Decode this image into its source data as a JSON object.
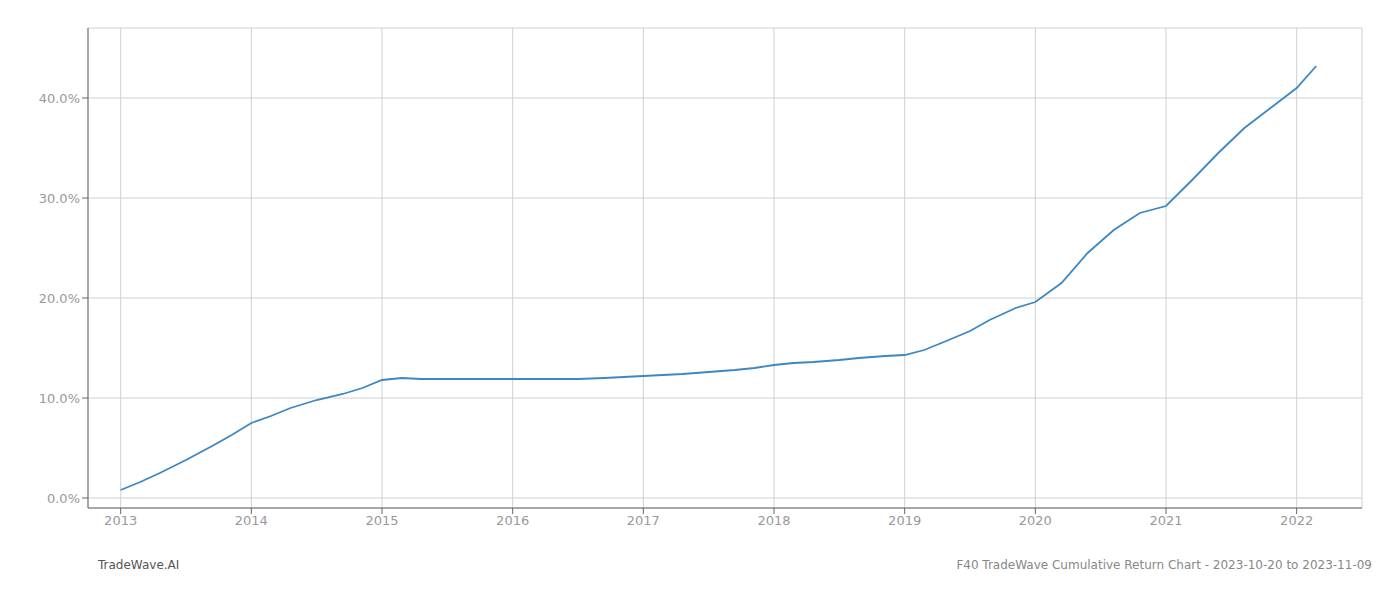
{
  "chart_data": {
    "type": "line",
    "x": [
      2013.0,
      2013.15,
      2013.3,
      2013.5,
      2013.7,
      2013.85,
      2014.0,
      2014.15,
      2014.3,
      2014.5,
      2014.7,
      2014.85,
      2015.0,
      2015.15,
      2015.3,
      2015.5,
      2015.7,
      2015.85,
      2016.0,
      2016.2,
      2016.5,
      2016.7,
      2016.85,
      2017.0,
      2017.15,
      2017.3,
      2017.5,
      2017.7,
      2017.85,
      2018.0,
      2018.15,
      2018.3,
      2018.5,
      2018.65,
      2018.85,
      2019.0,
      2019.15,
      2019.3,
      2019.5,
      2019.65,
      2019.85,
      2020.0,
      2020.2,
      2020.4,
      2020.6,
      2020.8,
      2021.0,
      2021.2,
      2021.4,
      2021.6,
      2021.8,
      2022.0,
      2022.15
    ],
    "values": [
      0.008,
      0.016,
      0.025,
      0.038,
      0.052,
      0.063,
      0.075,
      0.082,
      0.09,
      0.098,
      0.104,
      0.11,
      0.118,
      0.12,
      0.119,
      0.119,
      0.119,
      0.119,
      0.119,
      0.119,
      0.119,
      0.12,
      0.121,
      0.122,
      0.123,
      0.124,
      0.126,
      0.128,
      0.13,
      0.133,
      0.135,
      0.136,
      0.138,
      0.14,
      0.142,
      0.143,
      0.148,
      0.156,
      0.167,
      0.178,
      0.19,
      0.196,
      0.215,
      0.245,
      0.268,
      0.285,
      0.292,
      0.318,
      0.345,
      0.37,
      0.39,
      0.41,
      0.432
    ],
    "color": "#3d87c4",
    "xlim": [
      2012.75,
      2022.5
    ],
    "ylim": [
      -0.01,
      0.47
    ],
    "xticks": [
      2013,
      2014,
      2015,
      2016,
      2017,
      2018,
      2019,
      2020,
      2021,
      2022
    ],
    "yticks": [
      {
        "value": 0.0,
        "label": "0.0%"
      },
      {
        "value": 0.1,
        "label": "10.0%"
      },
      {
        "value": 0.2,
        "label": "20.0%"
      },
      {
        "value": 0.3,
        "label": "30.0%"
      },
      {
        "value": 0.4,
        "label": "40.0%"
      }
    ],
    "grid": true,
    "annotations": [
      "TradeWave.AI",
      "F40 TradeWave Cumulative Return Chart - 2023-10-20 to 2023-11-09"
    ]
  }
}
